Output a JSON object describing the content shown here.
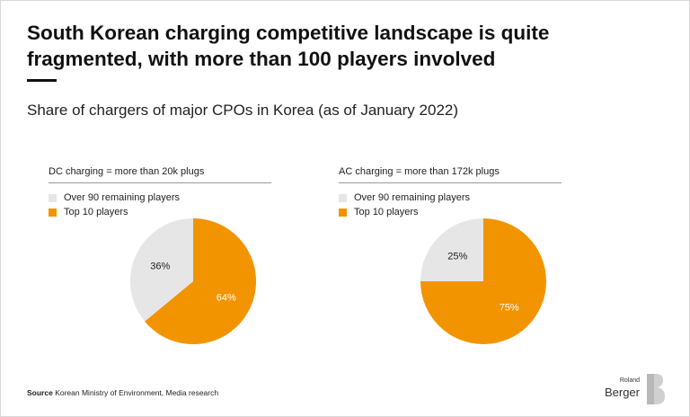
{
  "header": {
    "title": "South Korean charging competitive landscape is quite fragmented, with more than 100 players involved",
    "subtitle": "Share of chargers of major CPOs in Korea (as of January 2022)"
  },
  "colors": {
    "top10": "#F29400",
    "remaining": "#E6E6E6"
  },
  "chart_data": [
    {
      "type": "pie",
      "title": "DC charging = more than 20k plugs",
      "slices": [
        {
          "name": "Over 90 remaining players",
          "value": 36,
          "label": "36%",
          "color": "#E6E6E6"
        },
        {
          "name": "Top 10 players",
          "value": 64,
          "label": "64%",
          "color": "#F29400"
        }
      ],
      "legend_position": "top"
    },
    {
      "type": "pie",
      "title": "AC charging = more than 172k plugs",
      "slices": [
        {
          "name": "Over 90 remaining players",
          "value": 25,
          "label": "25%",
          "color": "#E6E6E6"
        },
        {
          "name": "Top 10 players",
          "value": 75,
          "label": "75%",
          "color": "#F29400"
        }
      ],
      "legend_position": "top"
    }
  ],
  "footer": {
    "source_label": "Source",
    "source_text": "Korean Ministry of Environment, Media research",
    "brand_small": "Roland",
    "brand_main": "Berger"
  }
}
